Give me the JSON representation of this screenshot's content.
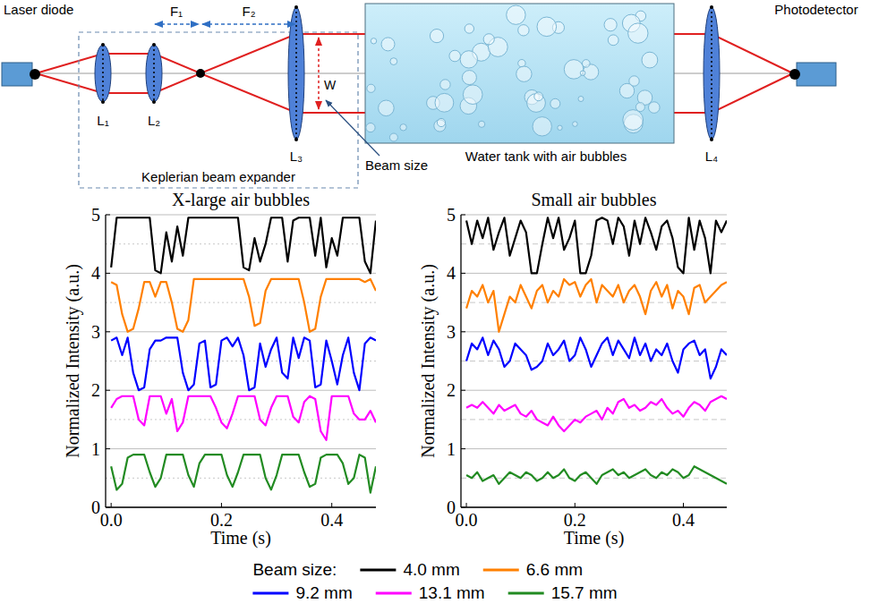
{
  "diagram": {
    "labels": {
      "laser": "Laser diode",
      "photodetector": "Photodetector",
      "expander": "Keplerian beam expander",
      "tank": "Water tank with air bubbles",
      "beam_size": "Beam size",
      "width": "W",
      "f1": "F₁",
      "f2": "F₂"
    },
    "lenses": [
      "L₁",
      "L₂",
      "L₃",
      "L₄"
    ]
  },
  "chart_data": [
    {
      "type": "line",
      "title": "X-large air bubbles",
      "x_label": "Time (s)",
      "y_label": "Normalized Intensity (a.u.)",
      "legend_title": "Beam size:",
      "legend": "bottom",
      "grid": true,
      "xlim": [
        -0.01,
        0.48
      ],
      "ylim": [
        0,
        5
      ],
      "xticks": [
        {
          "value": 0,
          "label": "0.0"
        },
        0.2,
        0.4
      ],
      "yticks": [
        0,
        1,
        2,
        3,
        4,
        5
      ],
      "x": [
        0,
        0.01,
        0.02,
        0.03,
        0.04,
        0.05,
        0.06,
        0.07,
        0.08,
        0.09,
        0.1,
        0.11,
        0.12,
        0.13,
        0.14,
        0.15,
        0.16,
        0.17,
        0.18,
        0.19,
        0.2,
        0.21,
        0.22,
        0.23,
        0.24,
        0.25,
        0.26,
        0.27,
        0.28,
        0.29,
        0.3,
        0.31,
        0.32,
        0.33,
        0.34,
        0.35,
        0.36,
        0.37,
        0.38,
        0.39,
        0.4,
        0.41,
        0.42,
        0.43,
        0.44,
        0.45,
        0.46,
        0.47,
        0.48
      ],
      "series": [
        {
          "name": "4.0 mm",
          "color": "#000000",
          "values": [
            4.1,
            4.95,
            4.95,
            4.95,
            4.95,
            4.95,
            4.95,
            4.95,
            4.05,
            4.0,
            4.7,
            4.2,
            4.8,
            4.3,
            4.95,
            4.95,
            4.95,
            4.95,
            4.95,
            4.95,
            4.95,
            4.95,
            4.95,
            4.95,
            4.1,
            4.05,
            4.6,
            4.2,
            4.5,
            4.95,
            4.95,
            4.95,
            4.2,
            4.9,
            4.95,
            4.95,
            4.95,
            4.3,
            4.95,
            4.1,
            4.6,
            4.3,
            4.95,
            4.95,
            4.95,
            4.95,
            4.2,
            4.0,
            4.9
          ]
        },
        {
          "name": "6.6 mm",
          "color": "#ff8000",
          "values": [
            3.85,
            3.8,
            3.3,
            3.0,
            3.05,
            3.4,
            3.85,
            3.85,
            3.6,
            3.85,
            3.85,
            3.5,
            3.05,
            3.0,
            3.2,
            3.9,
            3.9,
            3.9,
            3.9,
            3.9,
            3.9,
            3.9,
            3.9,
            3.9,
            3.9,
            3.6,
            3.1,
            3.15,
            3.7,
            3.9,
            3.9,
            3.9,
            3.9,
            3.9,
            3.9,
            3.5,
            3.0,
            3.05,
            3.6,
            3.9,
            3.9,
            3.9,
            3.9,
            3.9,
            3.9,
            3.9,
            3.85,
            3.9,
            3.7
          ]
        },
        {
          "name": "9.2 mm",
          "color": "#0000ff",
          "values": [
            2.85,
            2.9,
            2.6,
            2.9,
            2.3,
            2.0,
            2.05,
            2.7,
            2.85,
            2.85,
            2.9,
            2.9,
            2.9,
            2.3,
            2.0,
            2.1,
            2.8,
            2.85,
            2.05,
            2.1,
            2.85,
            2.9,
            2.75,
            2.9,
            2.6,
            2.0,
            2.05,
            2.8,
            2.4,
            2.7,
            2.9,
            2.3,
            2.2,
            2.9,
            2.55,
            2.9,
            2.85,
            2.05,
            2.1,
            2.85,
            2.5,
            2.1,
            2.6,
            2.9,
            2.3,
            2.0,
            2.8,
            2.9,
            2.85
          ]
        },
        {
          "name": "13.1 mm",
          "color": "#ff00ff",
          "values": [
            1.7,
            1.85,
            1.9,
            1.9,
            1.9,
            1.5,
            1.4,
            1.9,
            1.9,
            1.9,
            1.6,
            1.85,
            1.3,
            1.45,
            1.9,
            1.9,
            1.9,
            1.9,
            1.9,
            1.7,
            1.45,
            1.35,
            1.6,
            1.9,
            1.9,
            1.9,
            1.9,
            1.5,
            1.4,
            1.7,
            1.9,
            1.9,
            1.9,
            1.55,
            1.45,
            1.8,
            1.9,
            1.85,
            1.3,
            1.15,
            1.9,
            1.9,
            1.9,
            1.9,
            1.6,
            1.5,
            1.5,
            1.65,
            1.45
          ]
        },
        {
          "name": "15.7 mm",
          "color": "#228b22",
          "values": [
            0.7,
            0.3,
            0.4,
            0.85,
            0.9,
            0.9,
            0.9,
            0.6,
            0.35,
            0.5,
            0.9,
            0.9,
            0.9,
            0.9,
            0.55,
            0.35,
            0.75,
            0.9,
            0.9,
            0.9,
            0.9,
            0.55,
            0.35,
            0.6,
            0.9,
            0.9,
            0.9,
            0.9,
            0.5,
            0.3,
            0.55,
            0.9,
            0.9,
            0.9,
            0.9,
            0.6,
            0.35,
            0.4,
            0.85,
            0.9,
            0.9,
            0.9,
            0.75,
            0.4,
            0.5,
            0.9,
            0.85,
            0.25,
            0.7
          ]
        }
      ]
    },
    {
      "type": "line",
      "title": "Small air bubbles",
      "x_label": "Time (s)",
      "y_label": "Normalized Intensity (a.u.)",
      "grid": true,
      "xlim": [
        -0.01,
        0.48
      ],
      "ylim": [
        0,
        5
      ],
      "xticks": [
        {
          "value": 0,
          "label": "0.0"
        },
        0.2,
        0.4
      ],
      "yticks": [
        0,
        1,
        2,
        3,
        4,
        5
      ],
      "x": [
        0,
        0.01,
        0.02,
        0.03,
        0.04,
        0.05,
        0.06,
        0.07,
        0.08,
        0.09,
        0.1,
        0.11,
        0.12,
        0.13,
        0.14,
        0.15,
        0.16,
        0.17,
        0.18,
        0.19,
        0.2,
        0.21,
        0.22,
        0.23,
        0.24,
        0.25,
        0.26,
        0.27,
        0.28,
        0.29,
        0.3,
        0.31,
        0.32,
        0.33,
        0.34,
        0.35,
        0.36,
        0.37,
        0.38,
        0.39,
        0.4,
        0.41,
        0.42,
        0.43,
        0.44,
        0.45,
        0.46,
        0.47,
        0.48
      ],
      "series": [
        {
          "name": "4.0 mm",
          "color": "#000000",
          "values": [
            4.9,
            4.5,
            4.9,
            4.6,
            4.95,
            4.4,
            4.7,
            4.95,
            4.3,
            4.6,
            4.9,
            4.7,
            4.0,
            4.0,
            4.5,
            4.95,
            4.6,
            4.95,
            4.4,
            4.6,
            4.9,
            4.0,
            4.0,
            4.3,
            4.9,
            4.95,
            4.9,
            4.5,
            4.95,
            4.8,
            4.3,
            4.9,
            4.5,
            4.95,
            4.7,
            4.4,
            4.8,
            4.9,
            4.6,
            4.1,
            4.0,
            4.95,
            4.4,
            4.9,
            4.6,
            4.0,
            4.9,
            4.7,
            4.9
          ]
        },
        {
          "name": "6.6 mm",
          "color": "#ff8000",
          "values": [
            3.4,
            3.7,
            3.6,
            3.8,
            3.5,
            3.7,
            3.0,
            3.3,
            3.6,
            3.5,
            3.8,
            3.6,
            3.4,
            3.7,
            3.8,
            3.5,
            3.7,
            3.6,
            3.9,
            3.8,
            3.85,
            3.6,
            3.8,
            3.9,
            3.5,
            3.8,
            3.7,
            3.6,
            3.8,
            3.5,
            3.7,
            3.8,
            3.6,
            3.3,
            3.7,
            3.85,
            3.6,
            3.8,
            3.4,
            3.7,
            3.6,
            3.3,
            3.75,
            3.8,
            3.5,
            3.6,
            3.7,
            3.8,
            3.85
          ]
        },
        {
          "name": "9.2 mm",
          "color": "#0000ff",
          "values": [
            2.5,
            2.8,
            2.7,
            2.9,
            2.6,
            2.85,
            2.7,
            2.4,
            2.5,
            2.8,
            2.7,
            2.6,
            2.35,
            2.4,
            2.5,
            2.8,
            2.6,
            2.7,
            2.85,
            2.5,
            2.6,
            2.9,
            2.7,
            2.4,
            2.6,
            2.8,
            2.9,
            2.6,
            2.85,
            2.7,
            2.55,
            2.9,
            2.6,
            2.8,
            2.5,
            2.7,
            2.6,
            2.8,
            2.5,
            2.3,
            2.7,
            2.8,
            2.85,
            2.6,
            2.7,
            2.2,
            2.4,
            2.7,
            2.6
          ]
        },
        {
          "name": "13.1 mm",
          "color": "#ff00ff",
          "values": [
            1.7,
            1.75,
            1.7,
            1.8,
            1.7,
            1.6,
            1.75,
            1.65,
            1.7,
            1.75,
            1.6,
            1.55,
            1.65,
            1.5,
            1.45,
            1.4,
            1.55,
            1.4,
            1.3,
            1.4,
            1.5,
            1.45,
            1.55,
            1.6,
            1.65,
            1.5,
            1.7,
            1.6,
            1.8,
            1.85,
            1.7,
            1.75,
            1.65,
            1.7,
            1.8,
            1.75,
            1.85,
            1.7,
            1.6,
            1.65,
            1.55,
            1.7,
            1.8,
            1.75,
            1.65,
            1.8,
            1.85,
            1.9,
            1.85
          ]
        },
        {
          "name": "15.7 mm",
          "color": "#228b22",
          "values": [
            0.55,
            0.5,
            0.6,
            0.45,
            0.5,
            0.55,
            0.4,
            0.5,
            0.6,
            0.55,
            0.5,
            0.6,
            0.55,
            0.45,
            0.5,
            0.6,
            0.5,
            0.55,
            0.65,
            0.5,
            0.45,
            0.55,
            0.6,
            0.5,
            0.4,
            0.55,
            0.6,
            0.65,
            0.55,
            0.6,
            0.5,
            0.55,
            0.6,
            0.65,
            0.55,
            0.5,
            0.6,
            0.55,
            0.65,
            0.6,
            0.5,
            0.55,
            0.7,
            0.65,
            0.6,
            0.55,
            0.5,
            0.45,
            0.4
          ]
        }
      ]
    }
  ]
}
